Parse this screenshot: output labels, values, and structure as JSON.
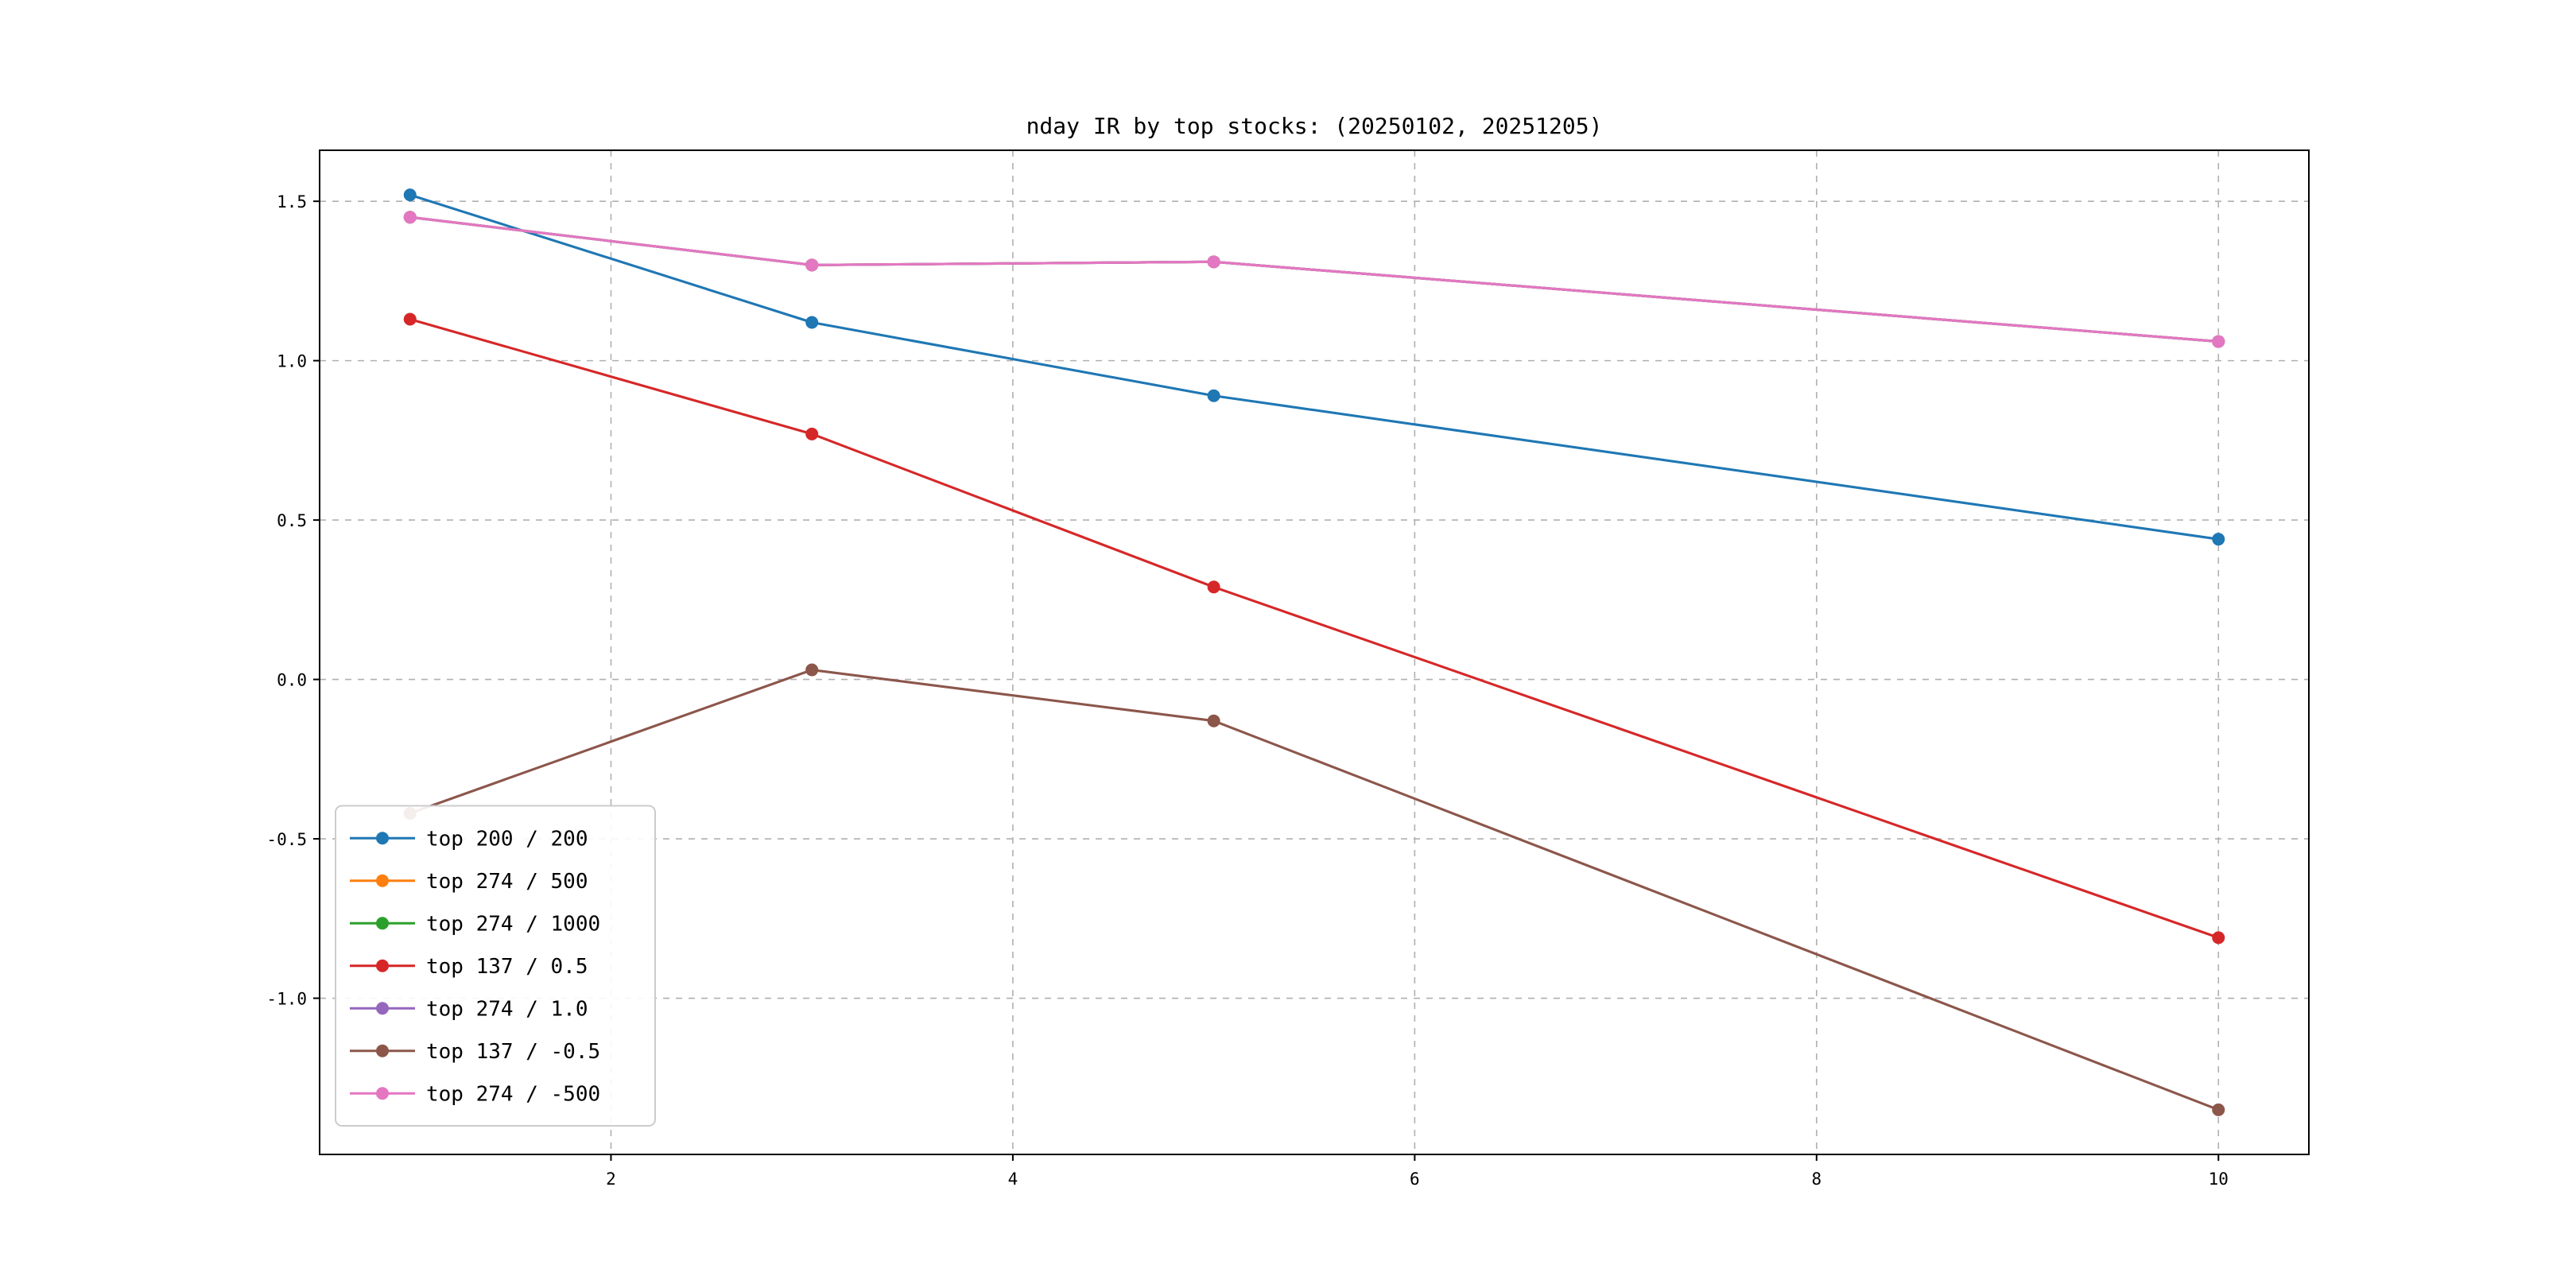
{
  "chart_data": {
    "type": "line",
    "title": "nday IR by top stocks: (20250102, 20251205)",
    "xlabel": "",
    "ylabel": "",
    "x": [
      1,
      3,
      5,
      10
    ],
    "xlim": [
      0.55,
      10.45
    ],
    "ylim": [
      -1.49,
      1.66
    ],
    "xticks": [
      2,
      4,
      6,
      8,
      10
    ],
    "xticklabels": [
      "2",
      "4",
      "6",
      "8",
      "10"
    ],
    "yticks": [
      -1.0,
      -0.5,
      0.0,
      0.5,
      1.0,
      1.5
    ],
    "yticklabels": [
      "-1.0",
      "-0.5",
      "0.0",
      "0.5",
      "1.0",
      "1.5"
    ],
    "grid": "dashed",
    "legend_position": "lower left",
    "series": [
      {
        "name": "top 200 / 200",
        "color": "#1f77b4",
        "values": [
          1.52,
          1.12,
          0.89,
          0.44
        ]
      },
      {
        "name": "top 274 / 500",
        "color": "#ff7f0e",
        "values": [
          1.45,
          1.3,
          1.31,
          1.06
        ]
      },
      {
        "name": "top 274 / 1000",
        "color": "#2ca02c",
        "values": [
          1.45,
          1.3,
          1.31,
          1.06
        ]
      },
      {
        "name": "top 137 / 0.5",
        "color": "#d62728",
        "values": [
          1.13,
          0.77,
          0.29,
          -0.81
        ]
      },
      {
        "name": "top 274 / 1.0",
        "color": "#9467bd",
        "values": [
          1.45,
          1.3,
          1.31,
          1.06
        ]
      },
      {
        "name": "top 137 / -0.5",
        "color": "#8c564b",
        "values": [
          -0.42,
          0.03,
          -0.13,
          -1.35
        ]
      },
      {
        "name": "top 274 / -500",
        "color": "#e377c2",
        "values": [
          1.45,
          1.3,
          1.31,
          1.06
        ]
      }
    ],
    "style": {
      "grid_color": "#b0b0b0",
      "spine_color": "#000000",
      "legend_border_color": "#cccccc",
      "background": "#ffffff"
    }
  }
}
